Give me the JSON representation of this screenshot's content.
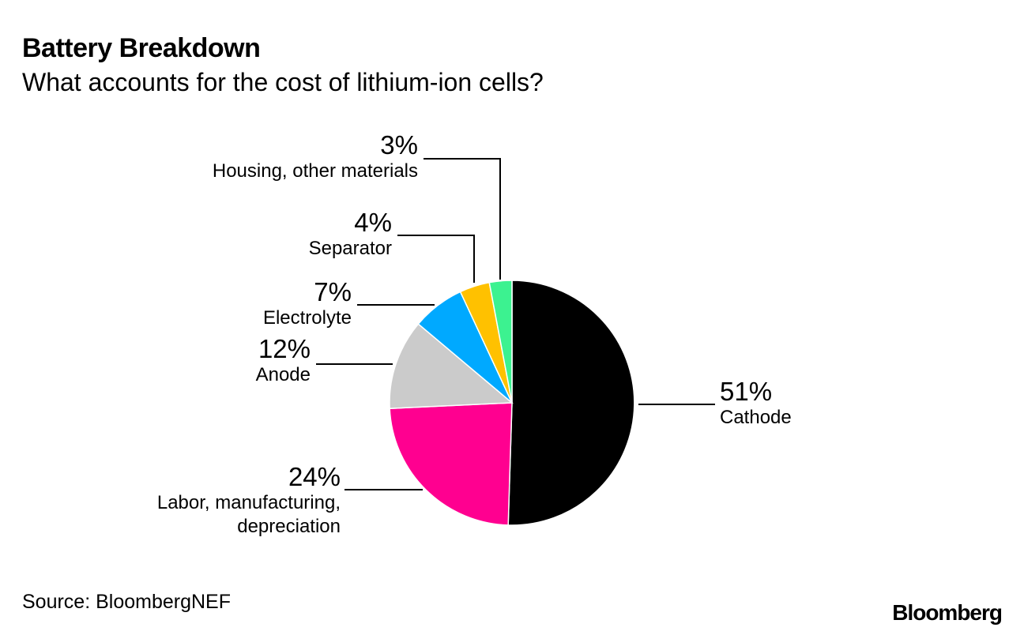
{
  "header": {
    "title": "Battery Breakdown",
    "subtitle": "What accounts for the cost of lithium-ion cells?"
  },
  "chart_data": {
    "type": "pie",
    "title": "Battery Breakdown",
    "subtitle": "What accounts for the cost of lithium-ion cells?",
    "slices": [
      {
        "label": "Cathode",
        "value": 51,
        "display": "51%",
        "color": "#000000"
      },
      {
        "label": "Labor, manufacturing, depreciation",
        "value": 24,
        "display": "24%",
        "color": "#ff0090"
      },
      {
        "label": "Anode",
        "value": 12,
        "display": "12%",
        "color": "#cbcbcb"
      },
      {
        "label": "Electrolyte",
        "value": 7,
        "display": "7%",
        "color": "#00a9ff"
      },
      {
        "label": "Separator",
        "value": 4,
        "display": "4%",
        "color": "#ffc100"
      },
      {
        "label": "Housing, other materials",
        "value": 3,
        "display": "3%",
        "color": "#3cf290"
      }
    ],
    "start_angle": "12 o'clock",
    "direction": "clockwise"
  },
  "labels": {
    "cathode": {
      "pct": "51%",
      "name": "Cathode"
    },
    "labor": {
      "pct": "24%",
      "name_line1": "Labor, manufacturing,",
      "name_line2": "depreciation"
    },
    "anode": {
      "pct": "12%",
      "name": "Anode"
    },
    "electrolyte": {
      "pct": "7%",
      "name": "Electrolyte"
    },
    "separator": {
      "pct": "4%",
      "name": "Separator"
    },
    "housing": {
      "pct": "3%",
      "name": "Housing, other materials"
    }
  },
  "footer": {
    "source": "Source: BloombergNEF",
    "brand": "Bloomberg"
  }
}
